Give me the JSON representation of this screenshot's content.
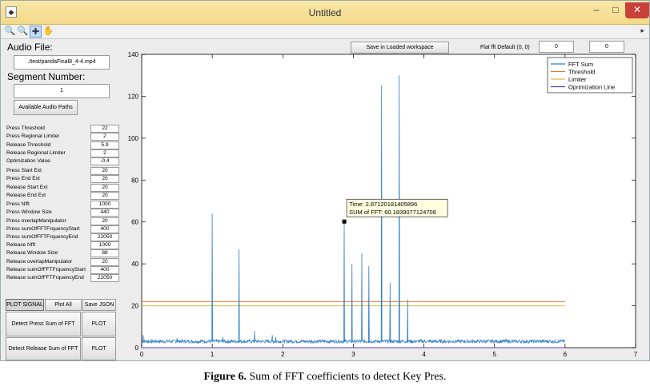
{
  "window": {
    "title": "Untitled",
    "min_glyph": "–",
    "max_glyph": "□",
    "close_glyph": "✕"
  },
  "toolbar": {
    "zoom_in": "🔍",
    "zoom_out": "🔍",
    "data_cursor": "✚",
    "pan": "✋",
    "arrow": "▸"
  },
  "left_panel": {
    "audio_file_label": "Audio File:",
    "audio_file_value": "./test/pandaFinal8_4-4.mp4",
    "segment_label": "Segment Number:",
    "segment_value": "1",
    "available_paths_btn": "Available Audio Paths",
    "param_groups": [
      [
        {
          "label": "Press Threshold",
          "value": "22"
        },
        {
          "label": "Press Regional Limiter",
          "value": "2"
        },
        {
          "label": "Release Threshold",
          "value": "5.9"
        },
        {
          "label": "Release Regional Limiter",
          "value": "2"
        },
        {
          "label": "Optimization Value",
          "value": "-0.4"
        }
      ],
      [
        {
          "label": "Press Start Ext",
          "value": "20"
        },
        {
          "label": "Press End Ext",
          "value": "20"
        },
        {
          "label": "Release Start Ext",
          "value": "20"
        },
        {
          "label": "Release End Ext",
          "value": "20"
        }
      ],
      [
        {
          "label": "Press Nfft",
          "value": "1000"
        },
        {
          "label": "Press Window Size",
          "value": "440"
        },
        {
          "label": "Press overlapManipulator",
          "value": "20"
        },
        {
          "label": "Press sumOfFFTFrquencyStart",
          "value": "400"
        },
        {
          "label": "Press sumOfFFTFrquencyEnd",
          "value": "22050"
        }
      ],
      [
        {
          "label": "Release Nfft",
          "value": "1000"
        },
        {
          "label": "Release Window Size",
          "value": "88"
        },
        {
          "label": "Release overlapManipulator",
          "value": "20"
        },
        {
          "label": "Release sumOfFFTFrquencyStart",
          "value": "400"
        },
        {
          "label": "Release sumOfFFTFrquencyEnd",
          "value": "22050"
        }
      ]
    ],
    "plot_signal_btn": "PLOT SIGNAL",
    "plot_all_btn": "Plot All",
    "save_json_btn": "Save JSON",
    "detect_press_btn": "Detect Press Sum of FFT",
    "detect_release_btn": "Detect Release Sum of FFT",
    "plot_btn": "PLOT"
  },
  "top_bar": {
    "save_workspace_btn": "Save in Loaded workspace",
    "flat_fft_label": "Flat fft Default (0, 0)",
    "flat_fft_value_1": "0",
    "flat_fft_value_2": "0"
  },
  "chart_data": {
    "type": "line",
    "xlim": [
      0,
      7
    ],
    "ylim": [
      0,
      140
    ],
    "xticks": [
      "0",
      "1",
      "2",
      "3",
      "4",
      "5",
      "6",
      "7"
    ],
    "yticks": [
      "0",
      "20",
      "40",
      "60",
      "80",
      "100",
      "120",
      "140"
    ],
    "grid": false,
    "legend_position": "top-right",
    "series": [
      {
        "name": "FFT Sum",
        "color": "#2e7fc8",
        "baseline": 3,
        "peaks": [
          {
            "x": 0.02,
            "y": 6
          },
          {
            "x": 0.5,
            "y": 4.5
          },
          {
            "x": 1.0,
            "y": 64
          },
          {
            "x": 1.15,
            "y": 5
          },
          {
            "x": 1.38,
            "y": 47
          },
          {
            "x": 1.6,
            "y": 8
          },
          {
            "x": 1.85,
            "y": 6
          },
          {
            "x": 1.9,
            "y": 5
          },
          {
            "x": 2.87,
            "y": 60.18
          },
          {
            "x": 2.98,
            "y": 40
          },
          {
            "x": 3.12,
            "y": 45
          },
          {
            "x": 3.22,
            "y": 39
          },
          {
            "x": 3.4,
            "y": 125
          },
          {
            "x": 3.52,
            "y": 31
          },
          {
            "x": 3.65,
            "y": 130
          },
          {
            "x": 3.77,
            "y": 23
          }
        ],
        "x_end": 6.0
      },
      {
        "name": "Threshold",
        "color": "#e07a3a",
        "y": 22,
        "x_range": [
          0,
          6
        ]
      },
      {
        "name": "Limiter",
        "color": "#e0b84a",
        "y": 20,
        "x_range": [
          0,
          6
        ]
      },
      {
        "name": "Oprimization Line",
        "color": "#5a3fb0",
        "y": 0,
        "x_range": [
          0,
          6
        ]
      }
    ],
    "annotation": {
      "x": 2.87120181405896,
      "y": 60.1839077124708,
      "line1": "Time: 2.87120181405896",
      "line2": "SUM of FFT: 60.1839077124708"
    }
  },
  "caption": {
    "bold": "Figure 6.",
    "text": " Sum of FFT coefficients to detect Key Pres."
  }
}
